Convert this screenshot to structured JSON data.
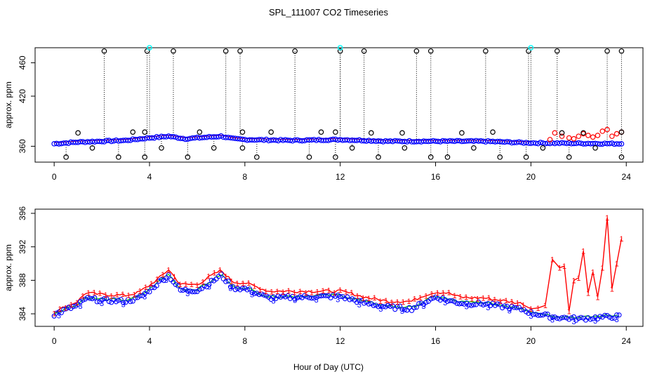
{
  "figure_title": "SPL_111007  CO2 Timeseries",
  "xlabel": "Hour of Day (UTC)",
  "chart_data": [
    {
      "type": "scatter",
      "panel": "top",
      "ylabel": "approx. ppm",
      "xlim": [
        -0.8,
        24.7
      ],
      "ylim": [
        341,
        478
      ],
      "xticks": [
        0,
        4,
        8,
        12,
        16,
        20,
        24
      ],
      "yticks": [
        360,
        420,
        460
      ],
      "series": [
        {
          "name": "blue",
          "color": "#0000ff",
          "marker": "o",
          "x_start": 0.0,
          "x_end": 23.8,
          "step": 0.1,
          "note": "main CO2 trace ~363-373 ppm",
          "y_keypoints": [
            [
              0,
              363
            ],
            [
              1,
              365
            ],
            [
              2,
              366
            ],
            [
              3,
              367
            ],
            [
              4,
              370
            ],
            [
              4.8,
              372
            ],
            [
              5.5,
              369
            ],
            [
              6,
              370
            ],
            [
              7,
              372
            ],
            [
              7.5,
              369
            ],
            [
              8,
              368
            ],
            [
              10,
              367
            ],
            [
              12,
              368
            ],
            [
              14,
              366
            ],
            [
              16,
              366
            ],
            [
              18,
              366
            ],
            [
              20,
              364
            ],
            [
              24,
              363
            ]
          ]
        },
        {
          "name": "red",
          "color": "#ff0000",
          "marker": "o",
          "x": [
            20.8,
            21.0,
            21.3,
            21.6,
            21.8,
            22.0,
            22.2,
            22.4,
            22.6,
            22.8,
            23.0,
            23.2,
            23.4,
            23.6,
            23.8
          ],
          "y": [
            368,
            376,
            372,
            370,
            369,
            372,
            375,
            373,
            371,
            373,
            378,
            380,
            372,
            375,
            377
          ]
        },
        {
          "name": "black_spikes",
          "color": "#000000",
          "marker": "o",
          "x": [
            2.1,
            3.9,
            5.0,
            7.2,
            7.8,
            10.1,
            12.0,
            13.0,
            15.2,
            15.8,
            18.1,
            19.9,
            21.1,
            23.2,
            23.8
          ],
          "y": [
            474,
            474,
            474,
            474,
            474,
            474,
            474,
            474,
            474,
            474,
            474,
            474,
            474,
            474,
            474
          ]
        },
        {
          "name": "black_low",
          "color": "#000000",
          "marker": "o",
          "x": [
            0.5,
            1.6,
            2.7,
            3.8,
            4.5,
            5.6,
            6.7,
            7.9,
            8.5,
            10.7,
            11.8,
            12.5,
            13.6,
            14.7,
            15.8,
            16.5,
            17.6,
            18.7,
            19.8,
            20.5,
            21.6,
            22.7,
            23.8
          ],
          "y": [
            347,
            358,
            347,
            347,
            358,
            347,
            358,
            358,
            347,
            347,
            347,
            358,
            347,
            358,
            347,
            347,
            358,
            347,
            347,
            358,
            347,
            358,
            347
          ]
        },
        {
          "name": "black_mid",
          "color": "#000000",
          "marker": "o",
          "x": [
            1.0,
            3.3,
            3.8,
            6.1,
            7.9,
            9.1,
            11.2,
            11.8,
            13.3,
            14.6,
            17.1,
            18.4,
            21.3,
            22.2,
            23.8
          ],
          "y": [
            376,
            377,
            377,
            377,
            377,
            377,
            377,
            377,
            376,
            376,
            376,
            377,
            376,
            376,
            377
          ]
        },
        {
          "name": "cyan",
          "color": "#00ffff",
          "marker": "o",
          "x": [
            4.0,
            12.0,
            20.0
          ],
          "y": [
            478,
            478,
            478
          ]
        }
      ]
    },
    {
      "type": "scatter",
      "panel": "bottom",
      "ylabel": "approx. ppm",
      "xlim": [
        -0.8,
        24.7
      ],
      "ylim": [
        382.5,
        396.5
      ],
      "xticks": [
        0,
        4,
        8,
        12,
        16,
        20,
        24
      ],
      "yticks": [
        384,
        388,
        392,
        396
      ],
      "series": [
        {
          "name": "1",
          "color": "#ff0000",
          "marker": "1",
          "keypoints": [
            [
              0,
              384.2
            ],
            [
              0.5,
              384.9
            ],
            [
              1,
              385.5
            ],
            [
              1.3,
              386.5
            ],
            [
              2,
              386.3
            ],
            [
              3,
              386.2
            ],
            [
              3.5,
              386.5
            ],
            [
              4,
              387.4
            ],
            [
              4.5,
              388.5
            ],
            [
              4.8,
              389.3
            ],
            [
              5.3,
              387.5
            ],
            [
              6,
              387.5
            ],
            [
              6.5,
              388.4
            ],
            [
              7,
              389.2
            ],
            [
              7.5,
              387.8
            ],
            [
              8,
              387.7
            ],
            [
              9,
              386.7
            ],
            [
              12,
              386.7
            ],
            [
              12.5,
              386.4
            ],
            [
              13,
              386.0
            ],
            [
              14,
              385.5
            ],
            [
              15,
              385.5
            ],
            [
              15.5,
              386.2
            ],
            [
              16,
              386.6
            ],
            [
              16.5,
              386.5
            ],
            [
              17,
              386.0
            ],
            [
              17.5,
              385.9
            ],
            [
              18,
              385.9
            ],
            [
              19,
              385.5
            ],
            [
              19.7,
              385.2
            ]
          ],
          "spikes_x": [
            20.0,
            20.3,
            20.6,
            20.9,
            21.2,
            21.4,
            21.6,
            21.8,
            22.0,
            22.2,
            22.4,
            22.6,
            22.8,
            23.0,
            23.2,
            23.4,
            23.6,
            23.8
          ],
          "spikes_y": [
            384.6,
            384.7,
            385.0,
            390.5,
            389.5,
            389.7,
            384.3,
            388.0,
            388.3,
            391.5,
            386.5,
            389.0,
            386.0,
            389.5,
            395.5,
            387.0,
            390.0,
            393.0
          ]
        },
        {
          "name": "2",
          "color": "#00cc00",
          "marker": "2",
          "offset_from_3": 0.15
        },
        {
          "name": "3",
          "color": "#0000ff",
          "marker": "3 / o",
          "keypoints": [
            [
              0,
              383.9
            ],
            [
              0.5,
              384.5
            ],
            [
              1,
              385.0
            ],
            [
              1.3,
              385.8
            ],
            [
              2,
              385.6
            ],
            [
              3,
              385.5
            ],
            [
              3.5,
              385.8
            ],
            [
              4,
              386.8
            ],
            [
              4.5,
              388.0
            ],
            [
              4.8,
              388.6
            ],
            [
              5.3,
              386.8
            ],
            [
              6,
              386.8
            ],
            [
              6.5,
              387.6
            ],
            [
              7,
              388.6
            ],
            [
              7.5,
              387.1
            ],
            [
              8,
              387.0
            ],
            [
              9,
              385.9
            ],
            [
              12,
              386.1
            ],
            [
              12.5,
              385.7
            ],
            [
              13,
              385.3
            ],
            [
              14,
              384.8
            ],
            [
              15,
              384.6
            ],
            [
              15.5,
              385.3
            ],
            [
              16,
              386.0
            ],
            [
              16.5,
              385.6
            ],
            [
              17,
              385.3
            ],
            [
              17.5,
              385.2
            ],
            [
              18,
              385.2
            ],
            [
              19,
              384.8
            ],
            [
              19.7,
              384.5
            ],
            [
              20,
              384.1
            ],
            [
              21,
              383.6
            ],
            [
              22,
              383.4
            ],
            [
              23,
              383.6
            ],
            [
              23.8,
              383.7
            ]
          ]
        }
      ]
    }
  ]
}
